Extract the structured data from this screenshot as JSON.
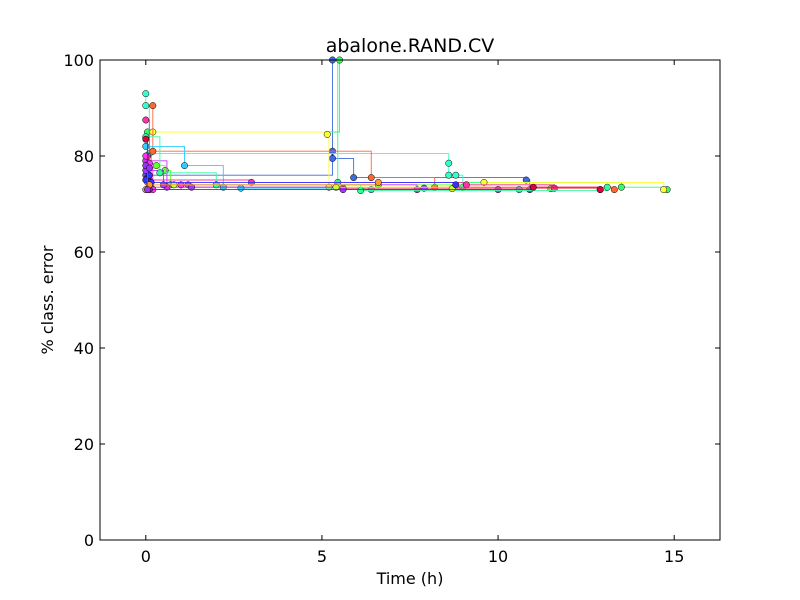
{
  "chart_data": {
    "type": "line",
    "title": "abalone.RAND.CV",
    "xlabel": "Time (h)",
    "ylabel": "% class. error",
    "xlim": [
      -1.3,
      16.3
    ],
    "ylim": [
      0,
      100
    ],
    "x_ticks": [
      0,
      5,
      10,
      15
    ],
    "y_ticks": [
      0,
      20,
      40,
      60,
      80,
      100
    ],
    "x_tick_labels": [
      "0",
      "5",
      "10",
      "15"
    ],
    "y_tick_labels": [
      "0",
      "20",
      "40",
      "60",
      "80",
      "100"
    ],
    "grid": false,
    "legend": "none",
    "series": [
      {
        "color": "#4169e1",
        "points": [
          [
            0.0,
            76.0
          ],
          [
            5.3,
            100.0
          ],
          [
            5.3,
            81.0
          ],
          [
            5.3,
            79.5
          ],
          [
            5.9,
            75.5
          ],
          [
            10.8,
            75.0
          ],
          [
            10.9,
            73.0
          ]
        ]
      },
      {
        "color": "#32ff66",
        "points": [
          [
            0.05,
            85.0
          ],
          [
            5.5,
            100.0
          ],
          [
            5.45,
            74.5
          ],
          [
            13.5,
            73.5
          ],
          [
            14.8,
            73.0
          ]
        ]
      },
      {
        "color": "#ffff33",
        "points": [
          [
            0.2,
            85.0
          ],
          [
            5.15,
            84.5
          ],
          [
            5.2,
            73.5
          ],
          [
            9.6,
            74.5
          ],
          [
            14.7,
            73.0
          ]
        ]
      },
      {
        "color": "#33ffcc",
        "points": [
          [
            0.0,
            93.0
          ],
          [
            0.0,
            90.5
          ],
          [
            0.1,
            80.5
          ],
          [
            8.6,
            78.5
          ],
          [
            8.6,
            76.0
          ],
          [
            8.8,
            76.0
          ],
          [
            9.0,
            73.5
          ]
        ]
      },
      {
        "color": "#ff6633",
        "points": [
          [
            0.2,
            90.5
          ],
          [
            0.2,
            81.0
          ],
          [
            6.4,
            75.5
          ],
          [
            8.2,
            73.5
          ],
          [
            13.3,
            73.0
          ]
        ]
      },
      {
        "color": "#33ccff",
        "points": [
          [
            0.0,
            82.0
          ],
          [
            1.1,
            78.0
          ],
          [
            2.2,
            73.5
          ],
          [
            2.7,
            73.3
          ],
          [
            6.4,
            73.0
          ],
          [
            10.6,
            73.0
          ]
        ]
      },
      {
        "color": "#66ff33",
        "points": [
          [
            0.3,
            78.0
          ],
          [
            0.55,
            77.0
          ],
          [
            0.7,
            74.0
          ],
          [
            6.6,
            74.0
          ],
          [
            11.5,
            73.2
          ]
        ]
      },
      {
        "color": "#cc33ff",
        "points": [
          [
            0.0,
            79.0
          ],
          [
            0.6,
            73.5
          ],
          [
            1.2,
            74.0
          ],
          [
            7.7,
            73.0
          ],
          [
            10.0,
            73.0
          ]
        ]
      },
      {
        "color": "#ff33aa",
        "points": [
          [
            0.0,
            87.5
          ],
          [
            0.1,
            75.0
          ],
          [
            3.0,
            74.5
          ],
          [
            9.1,
            74.0
          ],
          [
            11.6,
            73.3
          ]
        ]
      },
      {
        "color": "#ff3366",
        "points": [
          [
            0.05,
            80.0
          ],
          [
            0.15,
            73.5
          ],
          [
            5.6,
            73.3
          ],
          [
            12.9,
            73.0
          ]
        ]
      },
      {
        "color": "#aa33ff",
        "points": [
          [
            0.0,
            77.0
          ],
          [
            0.5,
            74.0
          ],
          [
            1.3,
            73.5
          ],
          [
            5.6,
            73.0
          ],
          [
            7.9,
            73.3
          ]
        ]
      },
      {
        "color": "#33ff99",
        "points": [
          [
            0.0,
            84.0
          ],
          [
            0.4,
            76.5
          ],
          [
            2.0,
            74.0
          ],
          [
            6.1,
            72.8
          ],
          [
            13.1,
            73.5
          ]
        ]
      },
      {
        "color": "#ccff33",
        "points": [
          [
            0.05,
            74.5
          ],
          [
            0.8,
            74.0
          ],
          [
            5.4,
            73.5
          ],
          [
            8.7,
            73.2
          ]
        ]
      },
      {
        "color": "#ff33ff",
        "points": [
          [
            0.0,
            80.0
          ],
          [
            0.1,
            78.5
          ],
          [
            0.2,
            73.0
          ],
          [
            1.0,
            74.0
          ]
        ]
      },
      {
        "color": "#dd0044",
        "points": [
          [
            0.0,
            83.5
          ],
          [
            0.05,
            75.5
          ],
          [
            0.1,
            73.0
          ],
          [
            11.0,
            73.5
          ],
          [
            12.9,
            73.0
          ]
        ]
      },
      {
        "color": "#3333ff",
        "points": [
          [
            0.0,
            75.0
          ],
          [
            0.1,
            76.0
          ],
          [
            0.15,
            74.5
          ],
          [
            8.8,
            74.0
          ]
        ]
      },
      {
        "color": "#ff9933",
        "points": [
          [
            0.0,
            73.0
          ],
          [
            0.1,
            74.0
          ],
          [
            6.6,
            74.5
          ]
        ]
      },
      {
        "color": "#9933ff",
        "points": [
          [
            0.0,
            78.0
          ],
          [
            0.1,
            77.5
          ],
          [
            0.05,
            73.0
          ]
        ]
      }
    ]
  }
}
